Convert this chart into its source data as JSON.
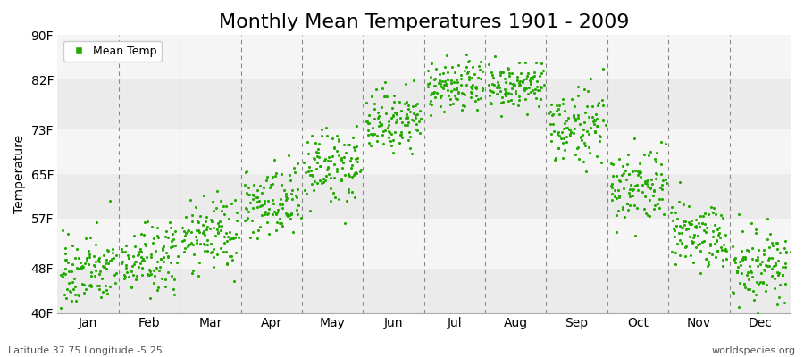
{
  "title": "Monthly Mean Temperatures 1901 - 2009",
  "ylabel": "Temperature",
  "xlabel_labels": [
    "Jan",
    "Feb",
    "Mar",
    "Apr",
    "May",
    "Jun",
    "Jul",
    "Aug",
    "Sep",
    "Oct",
    "Nov",
    "Dec"
  ],
  "ytick_labels": [
    "40F",
    "48F",
    "57F",
    "65F",
    "73F",
    "82F",
    "90F"
  ],
  "ytick_values": [
    40,
    48,
    57,
    65,
    73,
    82,
    90
  ],
  "ylim": [
    40,
    90
  ],
  "dot_color": "#22aa00",
  "dot_size": 5,
  "background_color": "#ffffff",
  "plot_bg_color": "#f0f0f0",
  "band_colors": [
    "#ebebeb",
    "#f5f5f5"
  ],
  "legend_label": "Mean Temp",
  "footer_left": "Latitude 37.75 Longitude -5.25",
  "footer_right": "worldspecies.org",
  "title_fontsize": 16,
  "axis_label_fontsize": 10,
  "tick_fontsize": 10,
  "footer_fontsize": 8,
  "monthly_means": [
    47.5,
    49.5,
    54.0,
    59.5,
    66.0,
    74.5,
    80.5,
    80.5,
    73.5,
    63.0,
    54.0,
    48.5
  ],
  "monthly_stds": [
    3.2,
    3.2,
    3.2,
    3.5,
    3.5,
    2.8,
    2.3,
    2.3,
    3.2,
    3.5,
    3.2,
    3.2
  ],
  "n_years": 109,
  "seed": 42
}
